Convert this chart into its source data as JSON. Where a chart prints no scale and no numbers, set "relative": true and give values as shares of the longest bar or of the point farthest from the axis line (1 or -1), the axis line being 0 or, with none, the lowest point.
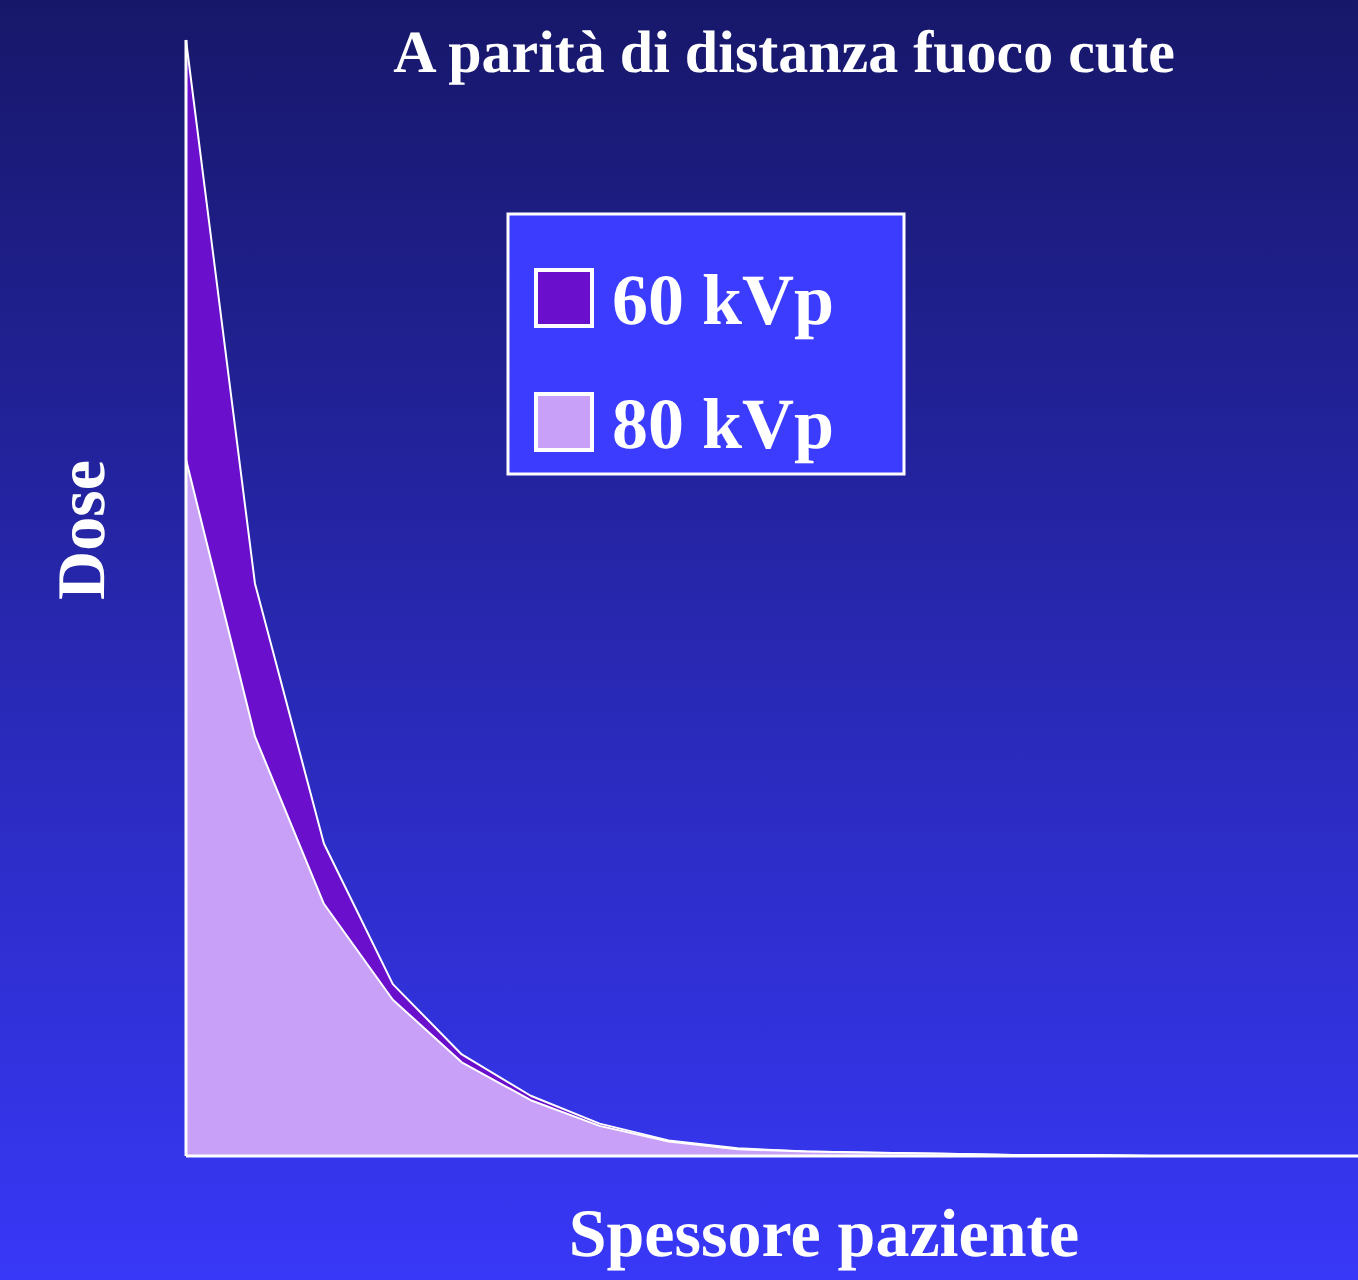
{
  "chart_data": {
    "type": "area",
    "title": "A parità di distanza fuoco cute",
    "xlabel": "Spessore paziente",
    "ylabel": "Dose",
    "relative": true,
    "legend": "top",
    "categories": [
      null,
      null,
      null,
      null,
      null,
      null,
      null,
      null,
      null,
      null,
      null,
      null,
      null,
      null,
      null,
      null,
      null,
      null
    ],
    "series": [
      {
        "name": "60 kVp",
        "color": "#6a0fcc",
        "values": [
          1,
          0.513,
          0.28,
          0.154,
          0.091,
          0.054,
          0.029,
          0.014,
          0.007,
          0.004,
          0.003,
          0.002,
          0.001,
          0.001,
          0,
          0,
          0,
          0
        ]
      },
      {
        "name": "80 kVp",
        "color": "#c9a0f7",
        "values": [
          0.624,
          0.376,
          0.226,
          0.14,
          0.084,
          0.05,
          0.027,
          0.013,
          0.006,
          0.004,
          0.003,
          0.002,
          0.001,
          0.001,
          0,
          0,
          0,
          0
        ]
      }
    ]
  }
}
